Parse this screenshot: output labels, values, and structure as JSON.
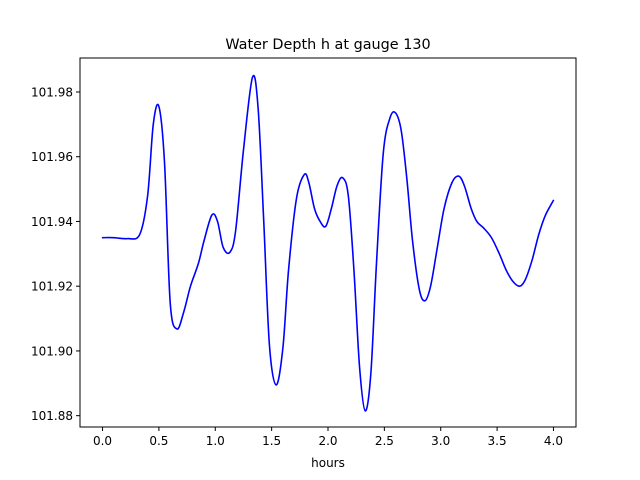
{
  "chart_data": {
    "type": "line",
    "title": "Water Depth h at gauge 130",
    "xlabel": "hours",
    "ylabel": "",
    "xlim": [
      -0.2,
      4.2
    ],
    "ylim": [
      101.8765,
      101.9905
    ],
    "grid": false,
    "xticks": [
      0.0,
      0.5,
      1.0,
      1.5,
      2.0,
      2.5,
      3.0,
      3.5,
      4.0
    ],
    "xtick_labels": [
      "0.0",
      "0.5",
      "1.0",
      "1.5",
      "2.0",
      "2.5",
      "3.0",
      "3.5",
      "4.0"
    ],
    "yticks": [
      101.88,
      101.9,
      101.92,
      101.94,
      101.96,
      101.98
    ],
    "ytick_labels": [
      "101.88",
      "101.90",
      "101.92",
      "101.94",
      "101.96",
      "101.98"
    ],
    "series": [
      {
        "color": "#0000ff",
        "points": [
          [
            0.0,
            101.935
          ],
          [
            0.1,
            101.935
          ],
          [
            0.22,
            101.9347
          ],
          [
            0.33,
            101.936
          ],
          [
            0.4,
            101.948
          ],
          [
            0.45,
            101.97
          ],
          [
            0.5,
            101.9755
          ],
          [
            0.55,
            101.958
          ],
          [
            0.6,
            101.915
          ],
          [
            0.66,
            101.9068
          ],
          [
            0.72,
            101.912
          ],
          [
            0.78,
            101.92
          ],
          [
            0.85,
            101.927
          ],
          [
            0.9,
            101.934
          ],
          [
            0.97,
            101.942
          ],
          [
            1.02,
            101.94
          ],
          [
            1.07,
            101.932
          ],
          [
            1.13,
            101.9305
          ],
          [
            1.18,
            101.937
          ],
          [
            1.25,
            101.962
          ],
          [
            1.33,
            101.9845
          ],
          [
            1.38,
            101.975
          ],
          [
            1.43,
            101.94
          ],
          [
            1.48,
            101.902
          ],
          [
            1.54,
            101.8895
          ],
          [
            1.6,
            101.901
          ],
          [
            1.65,
            101.925
          ],
          [
            1.72,
            101.947
          ],
          [
            1.79,
            101.9545
          ],
          [
            1.83,
            101.952
          ],
          [
            1.88,
            101.944
          ],
          [
            1.93,
            101.94
          ],
          [
            1.98,
            101.9385
          ],
          [
            2.03,
            101.944
          ],
          [
            2.08,
            101.951
          ],
          [
            2.13,
            101.9535
          ],
          [
            2.18,
            101.948
          ],
          [
            2.23,
            101.925
          ],
          [
            2.28,
            101.895
          ],
          [
            2.33,
            101.8815
          ],
          [
            2.38,
            101.893
          ],
          [
            2.43,
            101.927
          ],
          [
            2.49,
            101.961
          ],
          [
            2.55,
            101.972
          ],
          [
            2.6,
            101.9735
          ],
          [
            2.65,
            101.968
          ],
          [
            2.7,
            101.953
          ],
          [
            2.75,
            101.934
          ],
          [
            2.81,
            101.919
          ],
          [
            2.86,
            101.9155
          ],
          [
            2.91,
            101.92
          ],
          [
            2.97,
            101.932
          ],
          [
            3.03,
            101.944
          ],
          [
            3.1,
            101.952
          ],
          [
            3.16,
            101.954
          ],
          [
            3.21,
            101.951
          ],
          [
            3.27,
            101.944
          ],
          [
            3.32,
            101.94
          ],
          [
            3.38,
            101.938
          ],
          [
            3.45,
            101.935
          ],
          [
            3.52,
            101.93
          ],
          [
            3.58,
            101.925
          ],
          [
            3.64,
            101.9215
          ],
          [
            3.7,
            101.92
          ],
          [
            3.75,
            101.922
          ],
          [
            3.81,
            101.928
          ],
          [
            3.87,
            101.936
          ],
          [
            3.93,
            101.942
          ],
          [
            4.0,
            101.9465
          ]
        ]
      }
    ]
  }
}
